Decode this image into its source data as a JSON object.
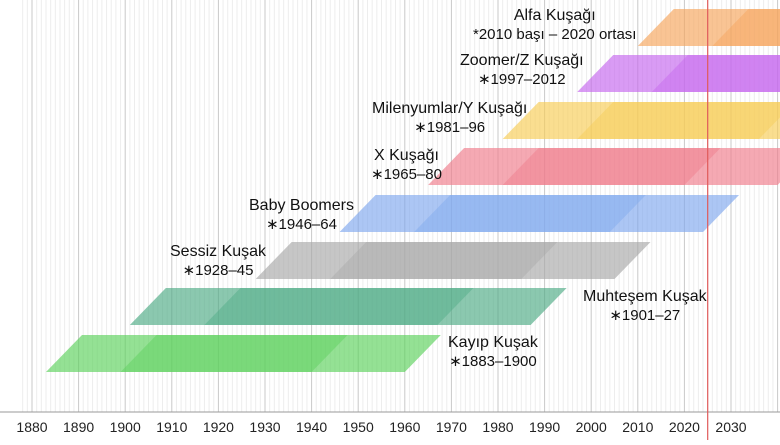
{
  "axis": {
    "ticks": [
      "1880",
      "1890",
      "1900",
      "1910",
      "1920",
      "1930",
      "1940",
      "1950",
      "1960",
      "1970",
      "1980",
      "1990",
      "2000",
      "2010",
      "2020",
      "2030"
    ],
    "current_year": 2025,
    "current_year_color": "#e05a5a"
  },
  "generations": [
    {
      "id": "kayip",
      "name": "Kayıp Kuşak",
      "years": "∗1883–1900",
      "birth_start": 1883,
      "birth_end": 1900,
      "color": "#5bd15b"
    },
    {
      "id": "muhtesem",
      "name": "Muhteşem Kuşak",
      "years": "∗1901–27",
      "birth_start": 1901,
      "birth_end": 1927,
      "color": "#4daa84"
    },
    {
      "id": "sessiz",
      "name": "Sessiz Kuşak",
      "years": "∗1928–45",
      "birth_start": 1928,
      "birth_end": 1945,
      "color": "#a8a8a8"
    },
    {
      "id": "boomers",
      "name": "Baby Boomers",
      "years": "∗1946–64",
      "birth_start": 1946,
      "birth_end": 1964,
      "color": "#7fa8ee"
    },
    {
      "id": "x",
      "name": "X Kuşağı",
      "years": "∗1965–80",
      "birth_start": 1965,
      "birth_end": 1980,
      "color": "#f07b8a"
    },
    {
      "id": "y",
      "name": "Milenyumlar/Y Kuşağı",
      "years": "∗1981–96",
      "birth_start": 1981,
      "birth_end": 1996,
      "color": "#f7cc55"
    },
    {
      "id": "z",
      "name": "Zoomer/Z Kuşağı",
      "years": "∗1997–2012",
      "birth_start": 1997,
      "birth_end": 2012,
      "color": "#c566ee"
    },
    {
      "id": "alfa",
      "name": "Alfa Kuşağı",
      "years": "*2010 başı – 2020 ortası",
      "birth_start": 2010,
      "birth_end": 2025,
      "color": "#f6a45a"
    }
  ]
}
